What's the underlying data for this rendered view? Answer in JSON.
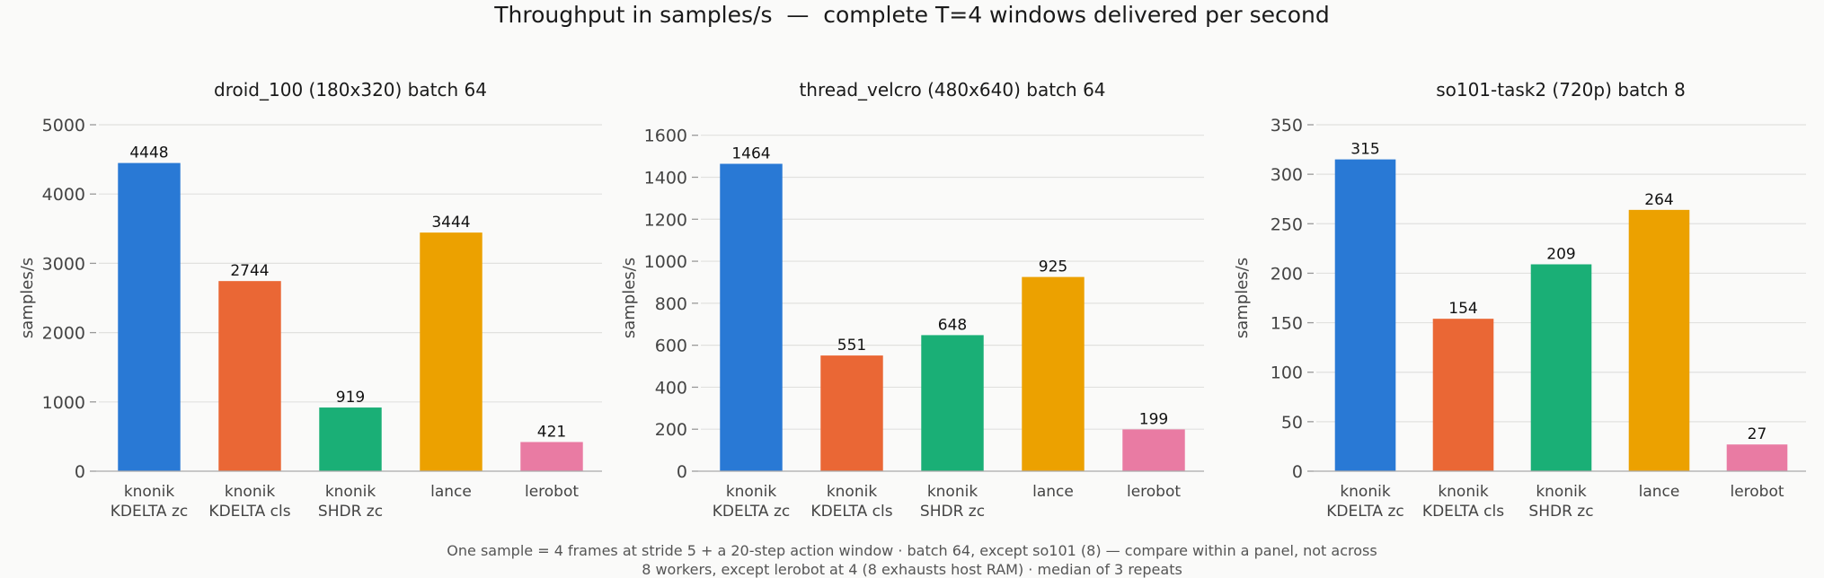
{
  "figure": {
    "title": "Throughput in samples/s  —  complete T=4 windows delivered per second",
    "footnote_line1": "One sample = 4 frames at stride 5 + a 20-step action window · batch 64, except so101 (8) — compare within a panel, not across",
    "footnote_line2": "8 workers, except lerobot at 4 (8 exhausts host RAM) · median of 3 repeats"
  },
  "colors": {
    "knonik_kdelta_zc": "#2979d5",
    "knonik_kdelta_cls": "#ea6735",
    "knonik_shdr_zc": "#1aaf76",
    "lance": "#eca100",
    "lerobot": "#e97ba3"
  },
  "chart_data": [
    {
      "type": "bar",
      "title": "droid_100 (180x320)   batch 64",
      "ylabel": "samples/s",
      "ylim": [
        0,
        5000
      ],
      "yticks": [
        0,
        1000,
        2000,
        3000,
        4000,
        5000
      ],
      "grid": true,
      "categories": [
        "knonik\nKDELTA zc",
        "knonik\nKDELTA cls",
        "knonik\nSHDR zc",
        "lance",
        "lerobot"
      ],
      "values": [
        4448,
        2744,
        919,
        3444,
        421
      ]
    },
    {
      "type": "bar",
      "title": "thread_velcro (480x640)   batch 64",
      "ylabel": "samples/s",
      "ylim": [
        0,
        1650
      ],
      "yticks": [
        0,
        200,
        400,
        600,
        800,
        1000,
        1200,
        1400,
        1600
      ],
      "grid": true,
      "categories": [
        "knonik\nKDELTA zc",
        "knonik\nKDELTA cls",
        "knonik\nSHDR zc",
        "lance",
        "lerobot"
      ],
      "values": [
        1464,
        551,
        648,
        925,
        199
      ]
    },
    {
      "type": "bar",
      "title": "so101-task2 (720p)   batch 8",
      "ylabel": "samples/s",
      "ylim": [
        0,
        350
      ],
      "yticks": [
        0,
        50,
        100,
        150,
        200,
        250,
        300,
        350
      ],
      "grid": true,
      "categories": [
        "knonik\nKDELTA zc",
        "knonik\nKDELTA cls",
        "knonik\nSHDR zc",
        "lance",
        "lerobot"
      ],
      "values": [
        315,
        154,
        209,
        264,
        27
      ]
    }
  ]
}
